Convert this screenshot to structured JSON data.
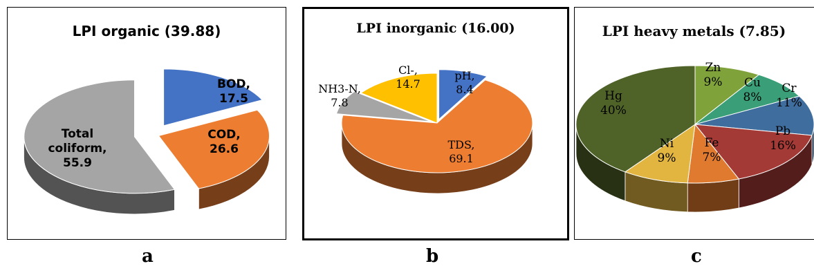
{
  "chart_data": [
    {
      "type": "pie",
      "title": "LPI organic (39.88)",
      "caption": "a",
      "slices": [
        {
          "label": "BOD,",
          "value": "17.5",
          "share": 17.5,
          "color": "#4472C4"
        },
        {
          "label": "COD,",
          "value": "26.6",
          "share": 26.6,
          "color": "#ED7D31"
        },
        {
          "label": "Total coliform,",
          "value": "55.9",
          "share": 55.9,
          "color": "#A5A5A5"
        }
      ]
    },
    {
      "type": "pie",
      "title": "LPI inorganic (16.00)",
      "caption": "b",
      "slices": [
        {
          "label": "pH,",
          "value": "8.4",
          "share": 8.4,
          "color": "#4472C4"
        },
        {
          "label": "TDS,",
          "value": "69.1",
          "share": 69.1,
          "color": "#ED7D31"
        },
        {
          "label": "NH3-N,",
          "value": "7.8",
          "share": 7.8,
          "color": "#A5A5A5"
        },
        {
          "label": "Cl-,",
          "value": "14.7",
          "share": 14.7,
          "color": "#FFC000"
        }
      ]
    },
    {
      "type": "pie",
      "title": "LPI heavy metals (7.85)",
      "caption": "c",
      "slices": [
        {
          "label": "Zn",
          "value": "9%",
          "share": 9,
          "color": "#7FA23A"
        },
        {
          "label": "Cu",
          "value": "8%",
          "share": 8,
          "color": "#3A9E78"
        },
        {
          "label": "Cr",
          "value": "11%",
          "share": 11,
          "color": "#3F6E9E"
        },
        {
          "label": "Pb",
          "value": "16%",
          "share": 16,
          "color": "#A33A36"
        },
        {
          "label": "Fe",
          "value": "7%",
          "share": 7,
          "color": "#E07A2E"
        },
        {
          "label": "Ni",
          "value": "9%",
          "share": 9,
          "color": "#E2B540"
        },
        {
          "label": "Hg",
          "value": "40%",
          "share": 40,
          "color": "#4F6228"
        }
      ]
    }
  ]
}
